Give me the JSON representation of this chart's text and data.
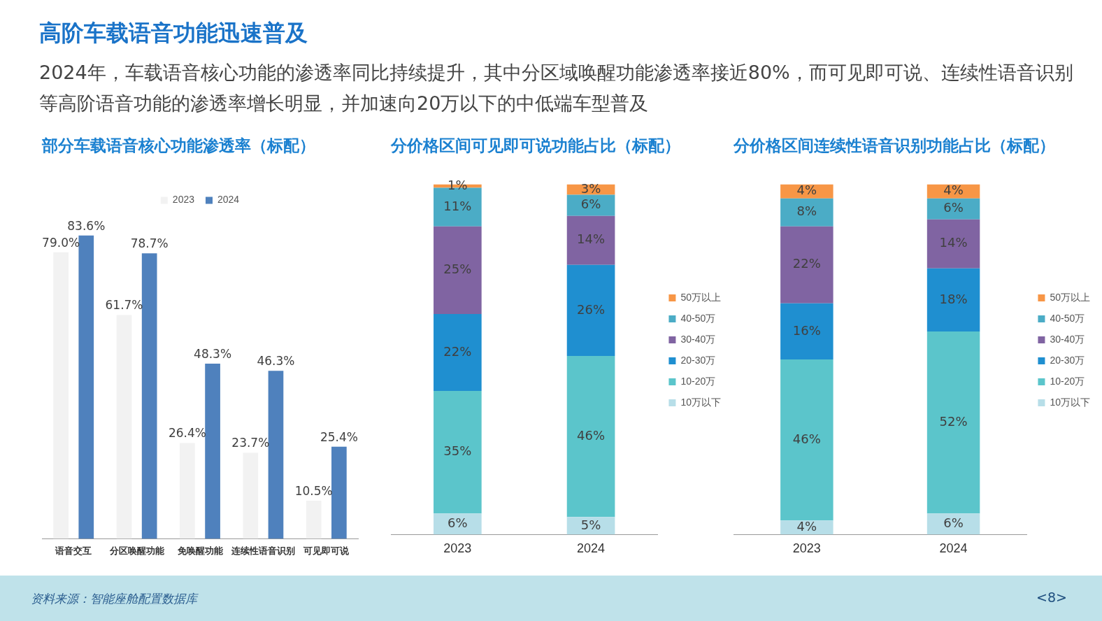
{
  "chart_data": [
    {
      "type": "bar",
      "title": "部分车载语音核心功能渗透率（标配）",
      "categories": [
        "语音交互",
        "分区唤醒功能",
        "免唤醒功能",
        "连续性语音识别",
        "可见即可说"
      ],
      "series": [
        {
          "name": "2023",
          "color": "#f2f2f2",
          "values": [
            79.0,
            61.7,
            26.4,
            23.7,
            10.5
          ],
          "value_labels": [
            "79.0%",
            "61.7%",
            "26.4%",
            "23.7%",
            "10.5%"
          ]
        },
        {
          "name": "2024",
          "color": "#4f81bd",
          "values": [
            83.6,
            78.7,
            48.3,
            46.3,
            25.4
          ],
          "value_labels": [
            "83.6%",
            "78.7%",
            "48.3%",
            "46.3%",
            "25.4%"
          ]
        }
      ],
      "legend": "top",
      "grid": false,
      "annotations": [
        "高阶车载语音功能迅速普及",
        "2024年，车载语音核心功能的渗透率同比持续提升，其中分区域唤醒功能渗透率接近80%，而可见即可说、连续性语音识别等高阶语音功能的渗透率增长明显，并加速向20万以下的中低端车型普及",
        "资料来源：智能座舱配置数据库",
        "<8>"
      ]
    },
    {
      "type": "bar",
      "title": "分价格区间可见即可说功能占比（标配）",
      "categories": [
        "2023",
        "2024"
      ],
      "stacked": true,
      "series": [
        {
          "name": "10万以下",
          "color": "#b7dee8",
          "values": [
            6,
            5
          ],
          "value_labels": [
            "6%",
            "5%"
          ]
        },
        {
          "name": "10-20万",
          "color": "#5bc5cb",
          "values": [
            35,
            46
          ],
          "value_labels": [
            "35%",
            "46%"
          ]
        },
        {
          "name": "20-30万",
          "color": "#1f8fd0",
          "values": [
            22,
            26
          ],
          "value_labels": [
            "22%",
            "26%"
          ]
        },
        {
          "name": "30-40万",
          "color": "#8064a2",
          "values": [
            25,
            14
          ],
          "value_labels": [
            "25%",
            "14%"
          ]
        },
        {
          "name": "40-50万",
          "color": "#4bacc6",
          "values": [
            11,
            6
          ],
          "value_labels": [
            "11%",
            "6%"
          ]
        },
        {
          "name": "50万以上",
          "color": "#f79646",
          "values": [
            1,
            3
          ],
          "value_labels": [
            "1%",
            "3%"
          ]
        }
      ],
      "legend": "right",
      "grid": false
    },
    {
      "type": "bar",
      "title": "分价格区间连续性语音识别功能占比（标配）",
      "categories": [
        "2023",
        "2024"
      ],
      "stacked": true,
      "series": [
        {
          "name": "10万以下",
          "color": "#b7dee8",
          "values": [
            4,
            6
          ],
          "value_labels": [
            "4%",
            "6%"
          ]
        },
        {
          "name": "10-20万",
          "color": "#5bc5cb",
          "values": [
            46,
            52
          ],
          "value_labels": [
            "46%",
            "52%"
          ]
        },
        {
          "name": "20-30万",
          "color": "#1f8fd0",
          "values": [
            16,
            18
          ],
          "value_labels": [
            "16%",
            "18%"
          ]
        },
        {
          "name": "30-40万",
          "color": "#8064a2",
          "values": [
            22,
            14
          ],
          "value_labels": [
            "22%",
            "14%"
          ]
        },
        {
          "name": "40-50万",
          "color": "#4bacc6",
          "values": [
            8,
            6
          ],
          "value_labels": [
            "8%",
            "6%"
          ]
        },
        {
          "name": "50万以上",
          "color": "#f79646",
          "values": [
            4,
            4
          ],
          "value_labels": [
            "4%",
            "4%"
          ]
        }
      ],
      "legend": "right",
      "grid": false
    }
  ]
}
